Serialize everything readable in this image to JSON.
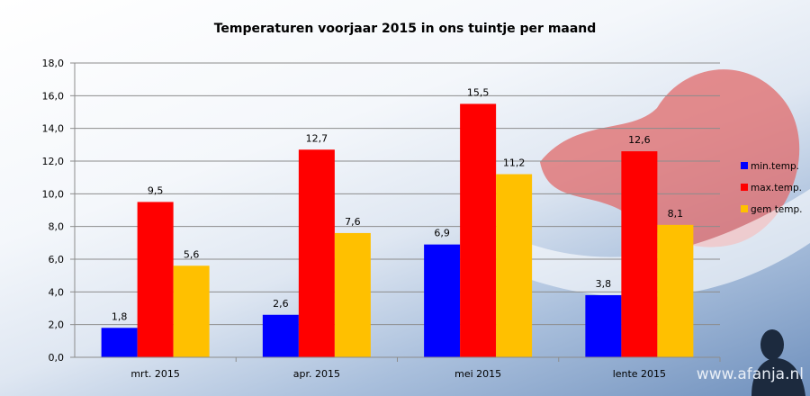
{
  "chart_data": {
    "type": "bar",
    "title": "Temperaturen voorjaar 2015 in ons tuintje per maand",
    "categories": [
      "mrt. 2015",
      "apr. 2015",
      "mei 2015",
      "lente 2015"
    ],
    "series": [
      {
        "name": "min.temp.",
        "color": "#0000ff",
        "values": [
          1.8,
          2.6,
          6.9,
          3.8
        ],
        "labels": [
          "1,8",
          "2,6",
          "6,9",
          "3,8"
        ]
      },
      {
        "name": "max.temp.",
        "color": "#ff0000",
        "values": [
          9.5,
          12.7,
          15.5,
          12.6
        ],
        "labels": [
          "9,5",
          "12,7",
          "15,5",
          "12,6"
        ]
      },
      {
        "name": "gem temp.",
        "color": "#ffc000",
        "values": [
          5.6,
          7.6,
          11.2,
          8.1
        ],
        "labels": [
          "5,6",
          "7,6",
          "11,2",
          "8,1"
        ]
      }
    ],
    "ylim": [
      0,
      18
    ],
    "yticks": [
      "0,0",
      "2,0",
      "4,0",
      "6,0",
      "8,0",
      "10,0",
      "12,0",
      "14,0",
      "16,0",
      "18,0"
    ],
    "grid": true,
    "legend": "right"
  },
  "watermark": "www.afanja.nl"
}
